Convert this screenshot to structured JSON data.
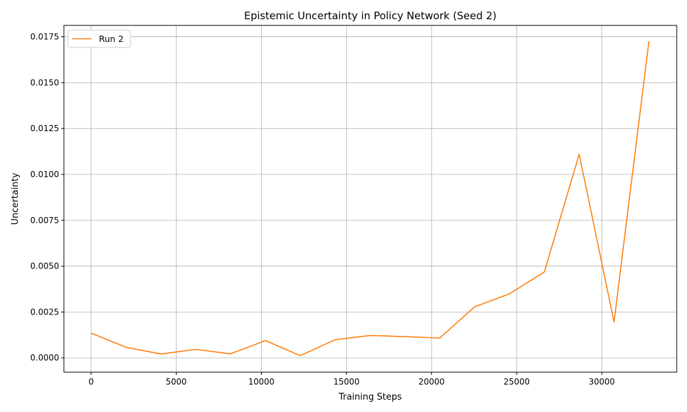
{
  "chart_data": {
    "type": "line",
    "title": "Epistemic Uncertainty in Policy Network (Seed 2)",
    "xlabel": "Training Steps",
    "ylabel": "Uncertainty",
    "xlim": [
      -1600,
      34400
    ],
    "ylim": [
      -0.00078,
      0.01812
    ],
    "x_ticks": [
      0,
      5000,
      10000,
      15000,
      20000,
      25000,
      30000
    ],
    "x_tick_labels": [
      "0",
      "5000",
      "10000",
      "15000",
      "20000",
      "25000",
      "30000"
    ],
    "y_ticks": [
      0.0,
      0.0025,
      0.005,
      0.0075,
      0.01,
      0.0125,
      0.015,
      0.0175
    ],
    "y_tick_labels": [
      "0.0000",
      "0.0025",
      "0.0050",
      "0.0075",
      "0.0100",
      "0.0125",
      "0.0150",
      "0.0175"
    ],
    "grid": true,
    "legend_position": "top-left",
    "series": [
      {
        "name": "Run 2",
        "color": "#ff7f0e",
        "x": [
          0,
          2048,
          4096,
          6144,
          8192,
          10240,
          12288,
          14336,
          16384,
          18432,
          20480,
          22528,
          24576,
          26624,
          28672,
          30720,
          32768
        ],
        "y": [
          0.00135,
          0.00058,
          0.00021,
          0.00046,
          0.00022,
          0.00094,
          0.00012,
          0.00099,
          0.00122,
          0.00116,
          0.00108,
          0.00278,
          0.00349,
          0.00468,
          0.0111,
          0.00196,
          0.01725
        ]
      }
    ]
  }
}
